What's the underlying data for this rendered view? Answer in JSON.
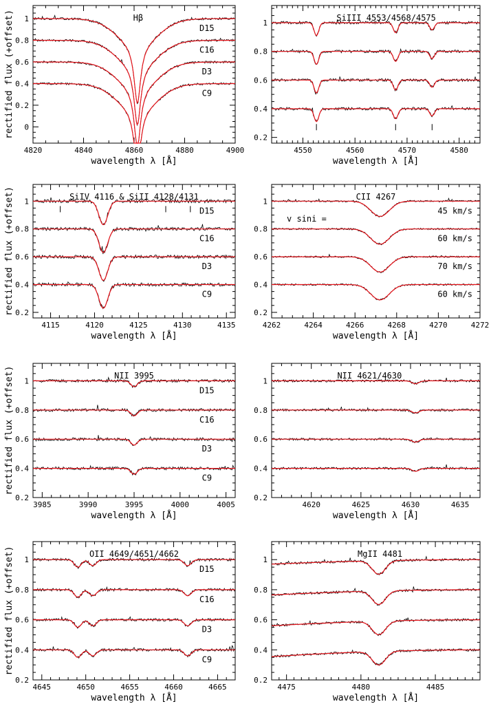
{
  "colors": {
    "observed": "#000000",
    "model": "#e8141b",
    "axes": "#000000"
  },
  "chart_data": [
    {
      "type": "line",
      "title": "Hβ",
      "xlabel": "wavelength λ [Å]",
      "ylabel": "rectified flux (+offset)",
      "xlim": [
        4820,
        4900
      ],
      "ylim": [
        -0.15,
        1.12
      ],
      "xticks": [
        4820,
        4840,
        4860,
        4880,
        4900
      ],
      "yticks": [
        0,
        0.2,
        0.4,
        0.6,
        0.8,
        1
      ],
      "ytick_labels": [
        "0",
        "0.2",
        "0.4",
        "0.6",
        "0.8",
        "1"
      ],
      "series": [
        {
          "name": "D15",
          "offset": 1.0
        },
        {
          "name": "C16",
          "offset": 0.8
        },
        {
          "name": "D3",
          "offset": 0.6
        },
        {
          "name": "C9",
          "offset": 0.4
        }
      ],
      "lines": [
        {
          "center": 4861.3,
          "depth": 0.78,
          "width": 1.6,
          "profile": "lorentz"
        }
      ],
      "noise": 0.01
    },
    {
      "type": "line",
      "title": "SiIII 4553/4568/4575",
      "xlabel": "wavelength λ [Å]",
      "ylabel": "",
      "xlim": [
        4544,
        4584
      ],
      "ylim": [
        0.16,
        1.12
      ],
      "xticks": [
        4550,
        4560,
        4570,
        4580
      ],
      "yticks": [
        0.2,
        0.4,
        0.6,
        0.8,
        1
      ],
      "ytick_labels": [
        "0.2",
        "0.4",
        "0.6",
        "0.8",
        "1"
      ],
      "series": [
        {
          "name": "",
          "offset": 1.0
        },
        {
          "name": "",
          "offset": 0.8
        },
        {
          "name": "",
          "offset": 0.6
        },
        {
          "name": "",
          "offset": 0.4
        }
      ],
      "lines": [
        {
          "center": 4552.6,
          "depth": 0.09,
          "width": 0.45,
          "profile": "gauss"
        },
        {
          "center": 4567.8,
          "depth": 0.07,
          "width": 0.45,
          "profile": "gauss"
        },
        {
          "center": 4574.8,
          "depth": 0.05,
          "width": 0.45,
          "profile": "gauss"
        }
      ],
      "markers": [
        4552.6,
        4567.8,
        4574.8
      ],
      "noise": 0.01
    },
    {
      "type": "line",
      "title": "SiIV 4116 & SiII 4128/4131",
      "xlabel": "wavelength λ [Å]",
      "ylabel": "rectified flux (+offset)",
      "xlim": [
        4113,
        4136
      ],
      "ylim": [
        0.16,
        1.12
      ],
      "xticks": [
        4115,
        4120,
        4125,
        4130,
        4135
      ],
      "yticks": [
        0.2,
        0.4,
        0.6,
        0.8,
        1
      ],
      "ytick_labels": [
        "0.2",
        "0.4",
        "0.6",
        "0.8",
        "1"
      ],
      "series": [
        {
          "name": "D15",
          "offset": 1.0
        },
        {
          "name": "C16",
          "offset": 0.8
        },
        {
          "name": "D3",
          "offset": 0.6
        },
        {
          "name": "C9",
          "offset": 0.4
        }
      ],
      "lines": [
        {
          "center": 4121.0,
          "depth": 0.17,
          "width": 0.5,
          "profile": "gauss"
        }
      ],
      "markers": [
        4116.1,
        4128.1,
        4130.9
      ],
      "noise": 0.012
    },
    {
      "type": "line",
      "title": "CII 4267",
      "xlabel": "wavelength λ [Å]",
      "ylabel": "",
      "xlim": [
        4262,
        4272
      ],
      "ylim": [
        0.16,
        1.12
      ],
      "xticks": [
        4262,
        4264,
        4266,
        4268,
        4270,
        4272
      ],
      "yticks": [
        0.2,
        0.4,
        0.6,
        0.8,
        1
      ],
      "ytick_labels": [
        "0.2",
        "0.4",
        "0.6",
        "0.8",
        "1"
      ],
      "annotation": "v sini =",
      "series": [
        {
          "name": "45 km/s",
          "offset": 1.0
        },
        {
          "name": "60 km/s",
          "offset": 0.8
        },
        {
          "name": "70 km/s",
          "offset": 0.6
        },
        {
          "name": "60 km/s",
          "offset": 0.4
        }
      ],
      "lines": [
        {
          "center": 4267.2,
          "depth": 0.11,
          "width": 0.45,
          "profile": "gauss"
        }
      ],
      "noise": 0.006
    },
    {
      "type": "line",
      "title": "NII 3995",
      "xlabel": "wavelength λ [Å]",
      "ylabel": "rectified flux (+offset)",
      "xlim": [
        3984,
        4006
      ],
      "ylim": [
        0.2,
        1.12
      ],
      "xticks": [
        3985,
        3990,
        3995,
        4000,
        4005
      ],
      "yticks": [
        0.2,
        0.4,
        0.6,
        0.8,
        1
      ],
      "ytick_labels": [
        "0.2",
        "0.4",
        "0.6",
        "0.8",
        "1"
      ],
      "series": [
        {
          "name": "D15",
          "offset": 1.0
        },
        {
          "name": "C16",
          "offset": 0.8
        },
        {
          "name": "D3",
          "offset": 0.6
        },
        {
          "name": "C9",
          "offset": 0.4
        }
      ],
      "lines": [
        {
          "center": 3995.0,
          "depth": 0.04,
          "width": 0.35,
          "profile": "gauss"
        }
      ],
      "noise": 0.01
    },
    {
      "type": "line",
      "title": "NII 4621/4630",
      "xlabel": "wavelength λ [Å]",
      "ylabel": "",
      "xlim": [
        4616,
        4637
      ],
      "ylim": [
        0.2,
        1.12
      ],
      "xticks": [
        4620,
        4625,
        4630,
        4635
      ],
      "yticks": [
        0.2,
        0.4,
        0.6,
        0.8,
        1
      ],
      "ytick_labels": [
        "0.2",
        "0.4",
        "0.6",
        "0.8",
        "1"
      ],
      "series": [
        {
          "name": "",
          "offset": 1.0
        },
        {
          "name": "",
          "offset": 0.8
        },
        {
          "name": "",
          "offset": 0.6
        },
        {
          "name": "",
          "offset": 0.4
        }
      ],
      "lines": [
        {
          "center": 4630.5,
          "depth": 0.02,
          "width": 0.35,
          "profile": "gauss"
        }
      ],
      "noise": 0.008
    },
    {
      "type": "line",
      "title": "OII 4649/4651/4662",
      "xlabel": "wavelength λ [Å]",
      "ylabel": "rectified flux (+offset)",
      "xlim": [
        4644,
        4667
      ],
      "ylim": [
        0.2,
        1.12
      ],
      "xticks": [
        4645,
        4650,
        4655,
        4660,
        4665
      ],
      "yticks": [
        0.2,
        0.4,
        0.6,
        0.8,
        1
      ],
      "ytick_labels": [
        "0.2",
        "0.4",
        "0.6",
        "0.8",
        "1"
      ],
      "series": [
        {
          "name": "D15",
          "offset": 1.0
        },
        {
          "name": "C16",
          "offset": 0.8
        },
        {
          "name": "D3",
          "offset": 0.6
        },
        {
          "name": "C9",
          "offset": 0.4
        }
      ],
      "lines": [
        {
          "center": 4649.1,
          "depth": 0.05,
          "width": 0.4,
          "profile": "gauss"
        },
        {
          "center": 4650.8,
          "depth": 0.04,
          "width": 0.4,
          "profile": "gauss"
        },
        {
          "center": 4661.6,
          "depth": 0.04,
          "width": 0.4,
          "profile": "gauss"
        }
      ],
      "noise": 0.009
    },
    {
      "type": "line",
      "title": "MgII 4481",
      "xlabel": "wavelength λ [Å]",
      "ylabel": "",
      "xlim": [
        4474,
        4488
      ],
      "ylim": [
        0.2,
        1.12
      ],
      "xticks": [
        4475,
        4480,
        4485
      ],
      "yticks": [
        0.2,
        0.4,
        0.6,
        0.8,
        1
      ],
      "ytick_labels": [
        "0.2",
        "0.4",
        "0.6",
        "0.8",
        "1"
      ],
      "series": [
        {
          "name": "",
          "offset": 1.0
        },
        {
          "name": "",
          "offset": 0.8
        },
        {
          "name": "",
          "offset": 0.6
        },
        {
          "name": "",
          "offset": 0.4
        }
      ],
      "lines": [
        {
          "center": 4481.2,
          "depth": 0.09,
          "width": 0.45,
          "profile": "gauss"
        }
      ],
      "slope": 0.05,
      "noise": 0.008
    }
  ]
}
